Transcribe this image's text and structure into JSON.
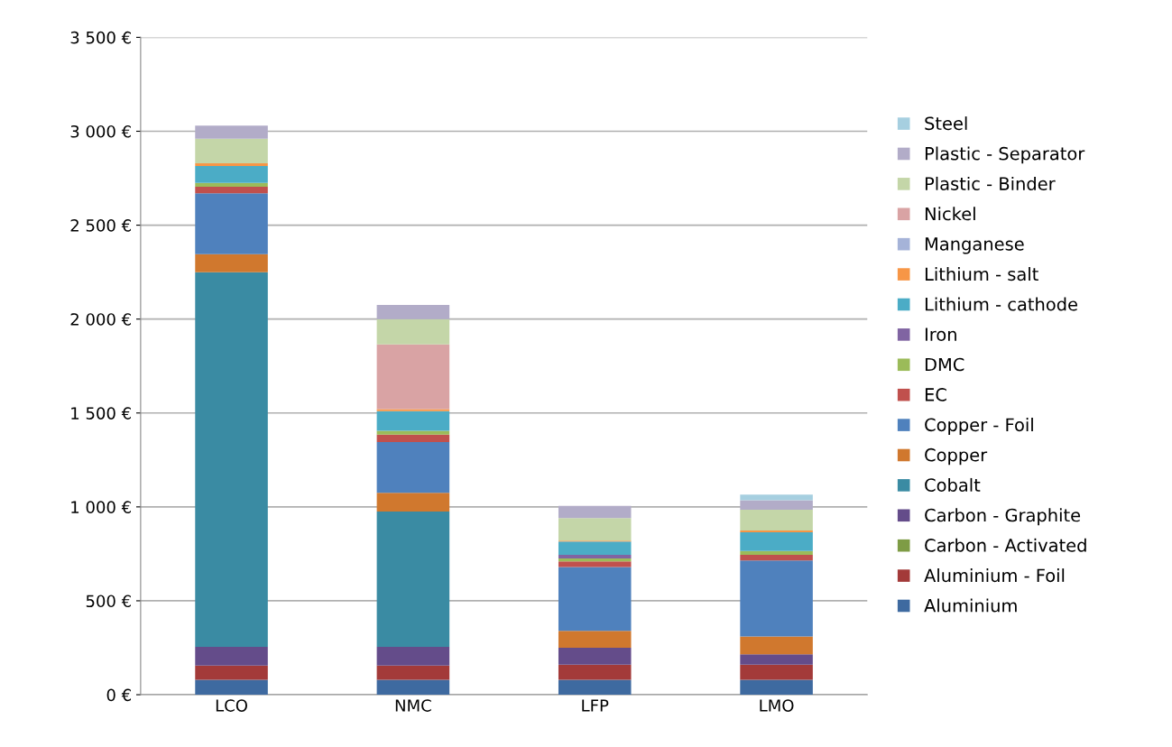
{
  "chart_data": {
    "type": "bar",
    "stacked": true,
    "categories": [
      "LCO",
      "NMC",
      "LFP",
      "LMO"
    ],
    "ylim": [
      0,
      3500
    ],
    "yticks": [
      {
        "value": 0,
        "label": "0 €"
      },
      {
        "value": 500,
        "label": "500 €"
      },
      {
        "value": 1000,
        "label": "1 000 €"
      },
      {
        "value": 1500,
        "label": "1 500 €"
      },
      {
        "value": 2000,
        "label": "2 000 €"
      },
      {
        "value": 2500,
        "label": "2 500 €"
      },
      {
        "value": 3000,
        "label": "3 000 €"
      },
      {
        "value": 3500,
        "label": "3 500 €"
      }
    ],
    "grid": "y",
    "legend": "right",
    "series": [
      {
        "name": "Aluminium",
        "color": "#3e6aa0",
        "values": [
          80,
          80,
          80,
          80
        ]
      },
      {
        "name": "Aluminium - Foil",
        "color": "#a33a39",
        "values": [
          75,
          75,
          80,
          80
        ]
      },
      {
        "name": "Carbon - Activated",
        "color": "#7e9c45",
        "values": [
          0,
          0,
          0,
          0
        ]
      },
      {
        "name": "Carbon - Graphite",
        "color": "#644c8a",
        "values": [
          100,
          100,
          90,
          55
        ]
      },
      {
        "name": "Cobalt",
        "color": "#3a8ba3",
        "values": [
          1995,
          720,
          0,
          0
        ]
      },
      {
        "name": "Copper",
        "color": "#d0782e",
        "values": [
          95,
          100,
          90,
          95
        ]
      },
      {
        "name": "Copper - Foil",
        "color": "#4f81bd",
        "values": [
          325,
          270,
          340,
          405
        ]
      },
      {
        "name": "EC",
        "color": "#c0504d",
        "values": [
          35,
          40,
          30,
          30
        ]
      },
      {
        "name": "DMC",
        "color": "#9bbb59",
        "values": [
          20,
          20,
          15,
          20
        ]
      },
      {
        "name": "Iron",
        "color": "#8064a2",
        "values": [
          0,
          0,
          20,
          0
        ]
      },
      {
        "name": "Lithium - cathode",
        "color": "#4bacc6",
        "values": [
          90,
          105,
          70,
          100
        ]
      },
      {
        "name": "Lithium - salt",
        "color": "#f79646",
        "values": [
          15,
          10,
          5,
          10
        ]
      },
      {
        "name": "Manganese",
        "color": "#a5b3d8",
        "values": [
          0,
          0,
          0,
          0
        ]
      },
      {
        "name": "Nickel",
        "color": "#d9a3a4",
        "values": [
          0,
          345,
          0,
          0
        ]
      },
      {
        "name": "Plastic - Binder",
        "color": "#c4d6a8",
        "values": [
          130,
          135,
          120,
          110
        ]
      },
      {
        "name": "Plastic - Separator",
        "color": "#b2acc8",
        "values": [
          70,
          75,
          65,
          50
        ]
      },
      {
        "name": "Steel",
        "color": "#a6cfe0",
        "values": [
          0,
          0,
          0,
          30
        ]
      }
    ]
  }
}
